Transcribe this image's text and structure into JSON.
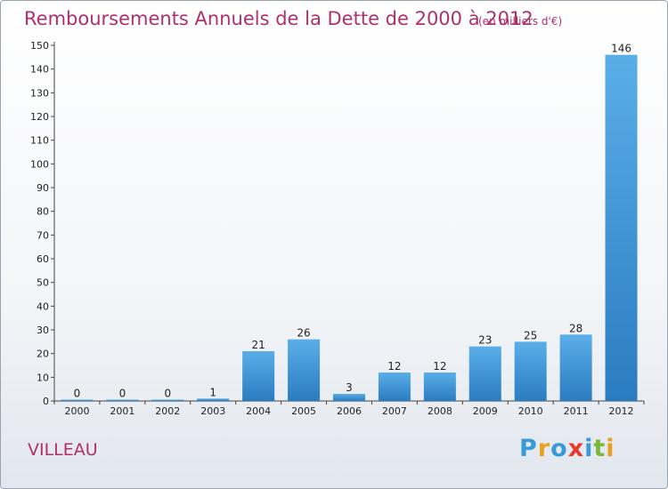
{
  "chart_data": {
    "type": "bar",
    "title": "Remboursements Annuels de la Dette de 2000 à 2012",
    "subtitle": "(en milliers d'€)",
    "categories": [
      "2000",
      "2001",
      "2002",
      "2003",
      "2004",
      "2005",
      "2006",
      "2007",
      "2008",
      "2009",
      "2010",
      "2011",
      "2012"
    ],
    "values": [
      0,
      0,
      0,
      1,
      21,
      26,
      3,
      12,
      12,
      23,
      25,
      28,
      146
    ],
    "ylim": [
      0,
      150
    ],
    "yticks": [
      0,
      10,
      20,
      30,
      40,
      50,
      60,
      70,
      80,
      90,
      100,
      110,
      120,
      130,
      140,
      150
    ],
    "grid": false,
    "bar_color_top": "#5aaee8",
    "bar_color_bottom": "#2a7cc0"
  },
  "commune": "VILLEAU",
  "logo": {
    "letters": [
      "P",
      "r",
      "o",
      "x",
      "i",
      "t",
      "i"
    ],
    "colors": [
      "#3a9ad9",
      "#e8a020",
      "#3a9ad9",
      "#e63a2a",
      "#3a9ad9",
      "#7ab83a",
      "#e8a020"
    ]
  }
}
